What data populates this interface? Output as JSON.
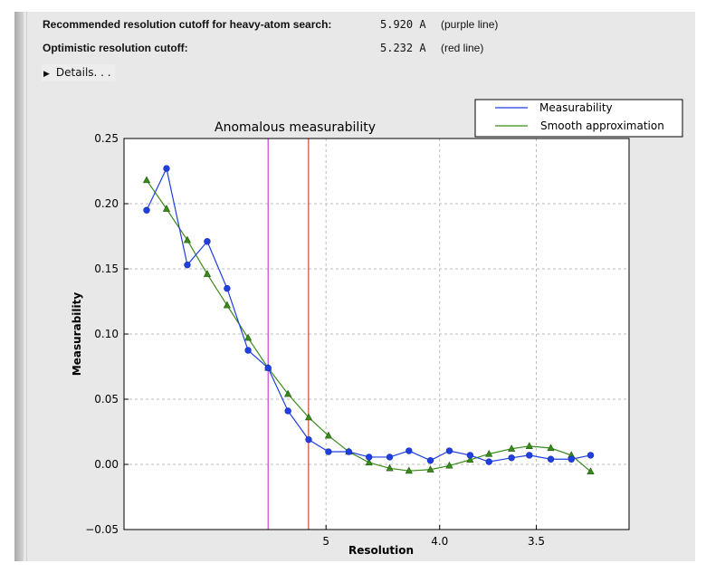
{
  "summary": {
    "recommended": {
      "label": "Recommended resolution cutoff for heavy-atom search:",
      "value": "5.920 A",
      "note": "(purple line)"
    },
    "optimistic": {
      "label": "Optimistic resolution cutoff:",
      "value": "5.232 A",
      "note": "(red line)"
    },
    "details_label": "Details. . ."
  },
  "chart_data": {
    "type": "line",
    "title": "Anomalous measurability",
    "xlabel": "Resolution",
    "ylabel": "Measurability",
    "x_scale": "reciprocal-squared resolution (1/d^2)",
    "x_ticks": [
      5,
      4.0,
      3.5
    ],
    "x_tick_labels": [
      "5",
      "4.0",
      "3.5"
    ],
    "ylim": [
      -0.05,
      0.25
    ],
    "y_ticks": [
      -0.05,
      0.0,
      0.05,
      0.1,
      0.15,
      0.2,
      0.25
    ],
    "y_tick_labels": [
      "−0.05",
      "0.00",
      "0.05",
      "0.10",
      "0.15",
      "0.20",
      "0.25"
    ],
    "grid": true,
    "legend_placement": "above top-right",
    "cutoff_lines": [
      {
        "resolution": 5.92,
        "color": "#d040d0"
      },
      {
        "resolution": 5.232,
        "color": "#c8502a"
      }
    ],
    "x": [
      14.94,
      10.9,
      8.93,
      7.79,
      7.0,
      6.38,
      5.92,
      5.55,
      5.23,
      4.97,
      4.74,
      4.54,
      4.36,
      4.21,
      4.06,
      3.94,
      3.82,
      3.72,
      3.61,
      3.53,
      3.44,
      3.36,
      3.29
    ],
    "series": [
      {
        "name": "Measurability",
        "color": "#1f3fe0",
        "marker": "circle",
        "values": [
          0.195,
          0.227,
          0.153,
          0.171,
          0.135,
          0.0875,
          0.074,
          0.041,
          0.019,
          0.0097,
          0.0097,
          0.0056,
          0.0056,
          0.0104,
          0.003,
          0.0104,
          0.007,
          0.002,
          0.005,
          0.007,
          0.004,
          0.004,
          0.007
        ]
      },
      {
        "name": "Smooth approximation",
        "color": "#3a8a1a",
        "marker": "triangle",
        "values": [
          0.218,
          0.196,
          0.172,
          0.146,
          0.122,
          0.097,
          0.074,
          0.054,
          0.036,
          0.022,
          0.0097,
          0.0014,
          -0.003,
          -0.005,
          -0.004,
          -0.001,
          0.0035,
          0.008,
          0.012,
          0.014,
          0.0125,
          0.007,
          -0.0055
        ]
      }
    ]
  }
}
